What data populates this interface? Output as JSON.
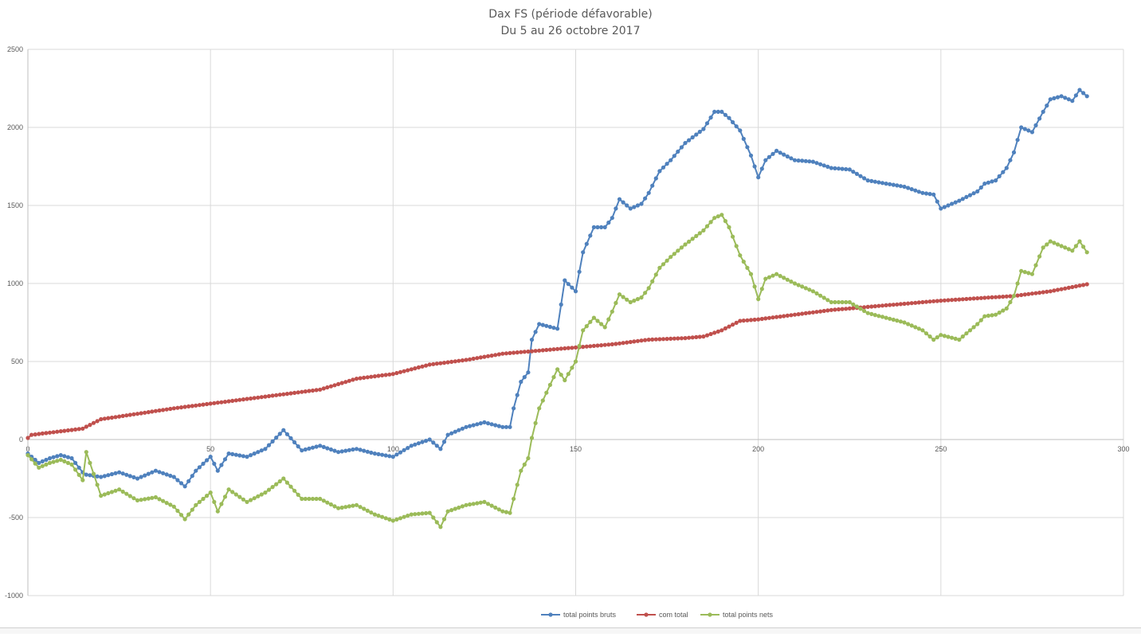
{
  "chart_data": {
    "type": "line",
    "title": "Dax FS (période défavorable)",
    "subtitle": "Du 5 au 26 octobre 2017",
    "xlabel": "",
    "ylabel": "",
    "xlim": [
      0,
      300
    ],
    "ylim": [
      -1000,
      2500
    ],
    "x_ticks": [
      "0",
      "50",
      "100",
      "150",
      "200",
      "250",
      "300"
    ],
    "y_ticks": [
      "-1000",
      "-500",
      "0",
      "500",
      "1000",
      "1500",
      "2000",
      "2500"
    ],
    "grid": true,
    "legend_position": "bottom",
    "series": [
      {
        "name": "total points bruts",
        "color": "#4f81bd",
        "x": [
          0,
          3,
          6,
          9,
          12,
          15,
          16,
          20,
          25,
          30,
          35,
          40,
          43,
          46,
          50,
          52,
          55,
          60,
          65,
          70,
          75,
          80,
          85,
          90,
          95,
          100,
          105,
          110,
          113,
          115,
          120,
          125,
          130,
          132,
          133,
          135,
          137,
          138,
          140,
          145,
          147,
          150,
          152,
          155,
          158,
          160,
          162,
          165,
          168,
          170,
          173,
          176,
          180,
          185,
          188,
          190,
          192,
          195,
          198,
          200,
          202,
          205,
          210,
          215,
          220,
          225,
          230,
          235,
          240,
          245,
          248,
          250,
          255,
          260,
          262,
          265,
          268,
          270,
          272,
          275,
          278,
          280,
          283,
          286,
          288,
          290
        ],
        "y": [
          -90,
          -150,
          -120,
          -100,
          -120,
          -210,
          -225,
          -240,
          -210,
          -250,
          -200,
          -240,
          -300,
          -200,
          -110,
          -200,
          -90,
          -110,
          -60,
          60,
          -70,
          -40,
          -80,
          -60,
          -90,
          -110,
          -40,
          0,
          -60,
          30,
          80,
          110,
          80,
          80,
          200,
          370,
          430,
          640,
          740,
          710,
          1020,
          950,
          1200,
          1360,
          1360,
          1420,
          1540,
          1480,
          1510,
          1580,
          1720,
          1790,
          1900,
          1990,
          2100,
          2100,
          2060,
          1980,
          1820,
          1680,
          1790,
          1850,
          1790,
          1780,
          1740,
          1730,
          1660,
          1640,
          1620,
          1580,
          1570,
          1480,
          1530,
          1590,
          1640,
          1660,
          1740,
          1840,
          2000,
          1970,
          2100,
          2180,
          2200,
          2170,
          2240,
          2200
        ]
      },
      {
        "name": "com total",
        "color": "#c0504d",
        "x": [
          0,
          1,
          15,
          20,
          40,
          60,
          80,
          90,
          100,
          110,
          120,
          130,
          140,
          150,
          160,
          170,
          180,
          185,
          190,
          195,
          200,
          210,
          220,
          230,
          240,
          250,
          260,
          270,
          280,
          290
        ],
        "y": [
          10,
          30,
          70,
          130,
          200,
          260,
          320,
          390,
          420,
          480,
          510,
          550,
          570,
          590,
          610,
          640,
          650,
          660,
          700,
          760,
          770,
          800,
          830,
          850,
          870,
          890,
          905,
          920,
          950,
          995
        ]
      },
      {
        "name": "total points nets",
        "color": "#9bbb59",
        "x": [
          0,
          3,
          6,
          9,
          12,
          15,
          16,
          20,
          25,
          30,
          35,
          40,
          43,
          46,
          50,
          52,
          55,
          60,
          65,
          70,
          75,
          80,
          85,
          90,
          95,
          100,
          105,
          110,
          113,
          115,
          120,
          125,
          130,
          132,
          133,
          135,
          137,
          138,
          140,
          145,
          147,
          150,
          152,
          155,
          158,
          160,
          162,
          165,
          168,
          170,
          173,
          176,
          180,
          185,
          188,
          190,
          192,
          195,
          198,
          200,
          202,
          205,
          210,
          215,
          220,
          225,
          230,
          235,
          240,
          245,
          248,
          250,
          255,
          260,
          262,
          265,
          268,
          270,
          272,
          275,
          278,
          280,
          283,
          286,
          288,
          290
        ],
        "y": [
          -100,
          -180,
          -150,
          -130,
          -160,
          -260,
          -80,
          -360,
          -320,
          -390,
          -370,
          -430,
          -510,
          -420,
          -340,
          -460,
          -320,
          -400,
          -340,
          -250,
          -380,
          -380,
          -440,
          -420,
          -480,
          -520,
          -480,
          -470,
          -560,
          -460,
          -420,
          -400,
          -460,
          -470,
          -380,
          -200,
          -120,
          10,
          200,
          450,
          380,
          500,
          700,
          780,
          720,
          820,
          930,
          880,
          910,
          970,
          1100,
          1170,
          1250,
          1340,
          1420,
          1440,
          1360,
          1180,
          1060,
          900,
          1030,
          1060,
          1000,
          950,
          880,
          880,
          810,
          780,
          750,
          700,
          640,
          670,
          640,
          740,
          790,
          800,
          840,
          920,
          1080,
          1060,
          1230,
          1270,
          1240,
          1210,
          1270,
          1200
        ]
      }
    ]
  }
}
